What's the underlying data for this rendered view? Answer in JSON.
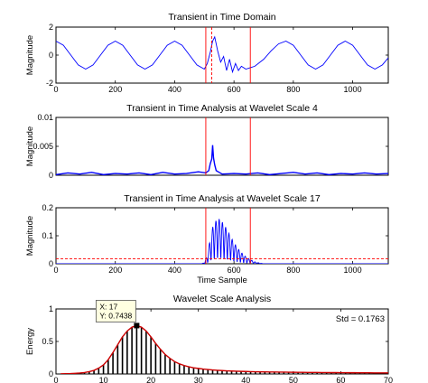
{
  "chart_data": [
    {
      "type": "line",
      "title": "Transient in Time Domain",
      "xlabel": "",
      "ylabel": "Magnitude",
      "xlim": [
        0,
        1120
      ],
      "ylim": [
        -2,
        2
      ],
      "xticks": [
        0,
        200,
        400,
        600,
        800,
        1000
      ],
      "yticks": [
        -2,
        0,
        2
      ],
      "grid": false,
      "series": [
        {
          "color": "#0000ff",
          "x": [
            0,
            25,
            50,
            75,
            100,
            125,
            150,
            175,
            200,
            225,
            250,
            275,
            300,
            325,
            350,
            375,
            400,
            425,
            450,
            475,
            500,
            510,
            520,
            528,
            535,
            545,
            555,
            565,
            575,
            585,
            595,
            605,
            615,
            625,
            640,
            655,
            670,
            700,
            725,
            750,
            775,
            800,
            825,
            850,
            875,
            900,
            925,
            950,
            975,
            1000,
            1025,
            1050,
            1075,
            1100,
            1120
          ],
          "y": [
            1.0,
            0.7,
            0.0,
            -0.7,
            -1.0,
            -0.7,
            0.0,
            0.7,
            1.0,
            0.7,
            0.0,
            -0.7,
            -1.0,
            -0.7,
            0.0,
            0.7,
            1.0,
            0.7,
            0.0,
            -0.7,
            -1.0,
            -0.6,
            0.2,
            1.0,
            1.3,
            0.3,
            -0.5,
            -0.1,
            -1.1,
            -0.3,
            -1.2,
            -0.6,
            -1.1,
            -0.8,
            -1.0,
            -0.9,
            -0.8,
            -0.3,
            0.3,
            0.8,
            1.0,
            0.7,
            0.0,
            -0.7,
            -1.0,
            -0.7,
            0.0,
            0.7,
            1.0,
            0.7,
            0.0,
            -0.7,
            -1.0,
            -0.7,
            -0.2
          ]
        }
      ],
      "reference_lines": [
        {
          "orientation": "vertical",
          "x": 505,
          "color": "#ff0000",
          "style": "solid"
        },
        {
          "orientation": "vertical",
          "x": 655,
          "color": "#ff0000",
          "style": "solid"
        },
        {
          "orientation": "vertical",
          "x": 525,
          "color": "#ff0000",
          "style": "dashed"
        }
      ]
    },
    {
      "type": "line",
      "title": "Transient in Time Analysis at Wavelet Scale 4",
      "xlabel": "",
      "ylabel": "Magnitude",
      "xlim": [
        0,
        1120
      ],
      "ylim": [
        0,
        0.01
      ],
      "xticks": [],
      "yticks": [
        0,
        0.005,
        0.01
      ],
      "ytick_labels": [
        "0",
        "0.005",
        "0.01"
      ],
      "grid": false,
      "series": [
        {
          "color": "#0000ff",
          "x": [
            0,
            40,
            80,
            120,
            160,
            200,
            240,
            280,
            320,
            360,
            400,
            440,
            480,
            505,
            515,
            520,
            525,
            528,
            531,
            535,
            540,
            550,
            560,
            600,
            640,
            680,
            720,
            760,
            800,
            840,
            880,
            920,
            960,
            1000,
            1040,
            1080,
            1120
          ],
          "y": [
            0.0001,
            0.0004,
            0.0002,
            0.0005,
            0.0001,
            0.0003,
            0.0002,
            0.0004,
            0.0001,
            0.0005,
            0.0002,
            0.0003,
            0.0006,
            0.0004,
            0.0008,
            0.002,
            0.0028,
            0.0052,
            0.003,
            0.0018,
            0.0008,
            0.0005,
            0.0002,
            0.0003,
            0.0002,
            0.0004,
            0.0001,
            0.0003,
            0.0005,
            0.0002,
            0.0004,
            0.0001,
            0.0003,
            0.0002,
            0.0004,
            0.0002,
            0.0003
          ]
        }
      ],
      "reference_lines": [
        {
          "orientation": "vertical",
          "x": 505,
          "color": "#ff0000",
          "style": "solid"
        },
        {
          "orientation": "vertical",
          "x": 655,
          "color": "#ff0000",
          "style": "solid"
        }
      ]
    },
    {
      "type": "line",
      "title": "Transient in Time Analysis at Wavelet Scale 17",
      "xlabel": "Time Sample",
      "ylabel": "Magnitude",
      "xlim": [
        0,
        1120
      ],
      "ylim": [
        0,
        0.2
      ],
      "xticks": [
        0,
        200,
        400,
        600,
        800,
        1000
      ],
      "yticks": [
        0,
        0.1,
        0.2
      ],
      "grid": false,
      "series": [
        {
          "color": "#0000ff",
          "oscillation_period": 11,
          "x": [
            0,
            490,
            500,
            510,
            520,
            530,
            540,
            550,
            560,
            570,
            580,
            590,
            600,
            610,
            620,
            630,
            640,
            650,
            660,
            670,
            680,
            700,
            1120
          ],
          "y": [
            0,
            0,
            0.004,
            0.03,
            0.09,
            0.14,
            0.155,
            0.16,
            0.15,
            0.135,
            0.115,
            0.095,
            0.075,
            0.06,
            0.045,
            0.035,
            0.025,
            0.018,
            0.012,
            0.007,
            0.004,
            0.0,
            0
          ]
        }
      ],
      "reference_lines": [
        {
          "orientation": "vertical",
          "x": 505,
          "color": "#ff0000",
          "style": "solid"
        },
        {
          "orientation": "vertical",
          "x": 655,
          "color": "#ff0000",
          "style": "solid"
        },
        {
          "orientation": "horizontal",
          "y": 0.018,
          "color": "#ff0000",
          "style": "dashed"
        }
      ]
    },
    {
      "type": "bar",
      "title": "Wavelet Scale Analysis",
      "xlabel": "",
      "ylabel": "Energy",
      "xlim": [
        0,
        70
      ],
      "ylim": [
        0,
        1
      ],
      "xticks": [
        0,
        10,
        20,
        30,
        40,
        50,
        60,
        70
      ],
      "yticks": [
        0,
        0.5,
        1
      ],
      "grid": false,
      "annotation_std": "Std = 0.1763",
      "datatip": {
        "x": 17,
        "y": 0.7438,
        "line1": "X: 17",
        "line2": "Y: 0.7438"
      },
      "curve_color": "#cc0000",
      "x": [
        1,
        2,
        3,
        4,
        5,
        6,
        7,
        8,
        9,
        10,
        11,
        12,
        13,
        14,
        15,
        16,
        17,
        18,
        19,
        20,
        21,
        22,
        23,
        24,
        25,
        26,
        27,
        28,
        29,
        30,
        31,
        32,
        33,
        34,
        35,
        36,
        37,
        38,
        39,
        40,
        41,
        42,
        43,
        44,
        45,
        46,
        47,
        48,
        49,
        50,
        51,
        52,
        53,
        54,
        55,
        56,
        57,
        58,
        59,
        60,
        61,
        62,
        63,
        64,
        65,
        66,
        67,
        68,
        69,
        70
      ],
      "values": [
        0.002,
        0.004,
        0.006,
        0.01,
        0.015,
        0.022,
        0.035,
        0.055,
        0.09,
        0.14,
        0.22,
        0.33,
        0.45,
        0.57,
        0.66,
        0.72,
        0.7438,
        0.72,
        0.66,
        0.57,
        0.47,
        0.38,
        0.3,
        0.24,
        0.19,
        0.155,
        0.13,
        0.11,
        0.095,
        0.085,
        0.075,
        0.068,
        0.062,
        0.057,
        0.052,
        0.048,
        0.045,
        0.042,
        0.04,
        0.038,
        0.036,
        0.034,
        0.033,
        0.032,
        0.031,
        0.03,
        0.029,
        0.028,
        0.027,
        0.026,
        0.025,
        0.025,
        0.024,
        0.023,
        0.023,
        0.022,
        0.022,
        0.021,
        0.021,
        0.02,
        0.02,
        0.019,
        0.019,
        0.018,
        0.018,
        0.018,
        0.017,
        0.017,
        0.016,
        0.016
      ]
    }
  ]
}
